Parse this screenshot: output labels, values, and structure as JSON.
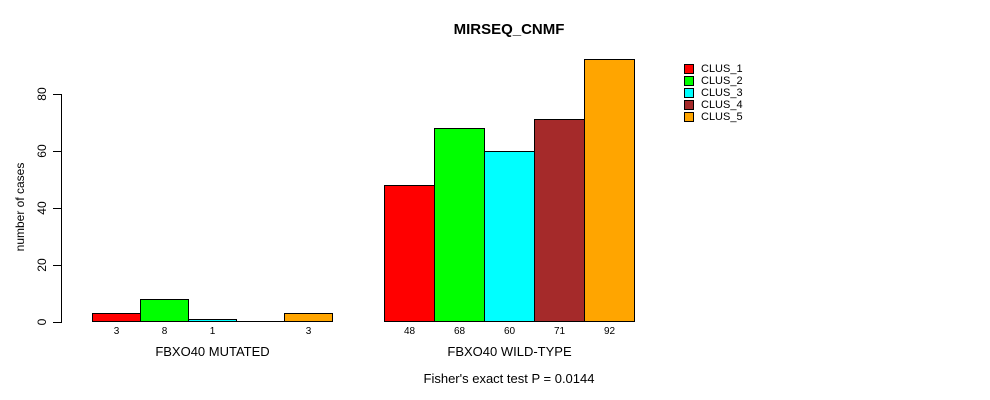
{
  "chart_data": {
    "type": "bar",
    "title": "MIRSEQ_CNMF",
    "subtitle": "Fisher's exact test P = 0.0144",
    "xlabel": "",
    "ylabel": "number of cases",
    "categories": [
      "FBXO40 MUTATED",
      "FBXO40 WILD-TYPE"
    ],
    "series": [
      {
        "name": "CLUS_1",
        "color": "#FF0000",
        "values": [
          3,
          48
        ]
      },
      {
        "name": "CLUS_2",
        "color": "#00FF00",
        "values": [
          8,
          68
        ]
      },
      {
        "name": "CLUS_3",
        "color": "#00FFFF",
        "values": [
          1,
          60
        ]
      },
      {
        "name": "CLUS_4",
        "color": "#A52A2A",
        "values": [
          0,
          71
        ]
      },
      {
        "name": "CLUS_5",
        "color": "#FFA500",
        "values": [
          3,
          92
        ]
      }
    ],
    "bar_value_labels": [
      [
        "3",
        "8",
        "1",
        "",
        "3"
      ],
      [
        "48",
        "68",
        "60",
        "71",
        "92"
      ]
    ],
    "yticks": [
      0,
      20,
      40,
      60,
      80
    ],
    "ylim": [
      0,
      92
    ],
    "grid": false,
    "legend": {
      "position": "top-right",
      "entries": [
        "CLUS_1",
        "CLUS_2",
        "CLUS_3",
        "CLUS_4",
        "CLUS_5"
      ]
    }
  }
}
